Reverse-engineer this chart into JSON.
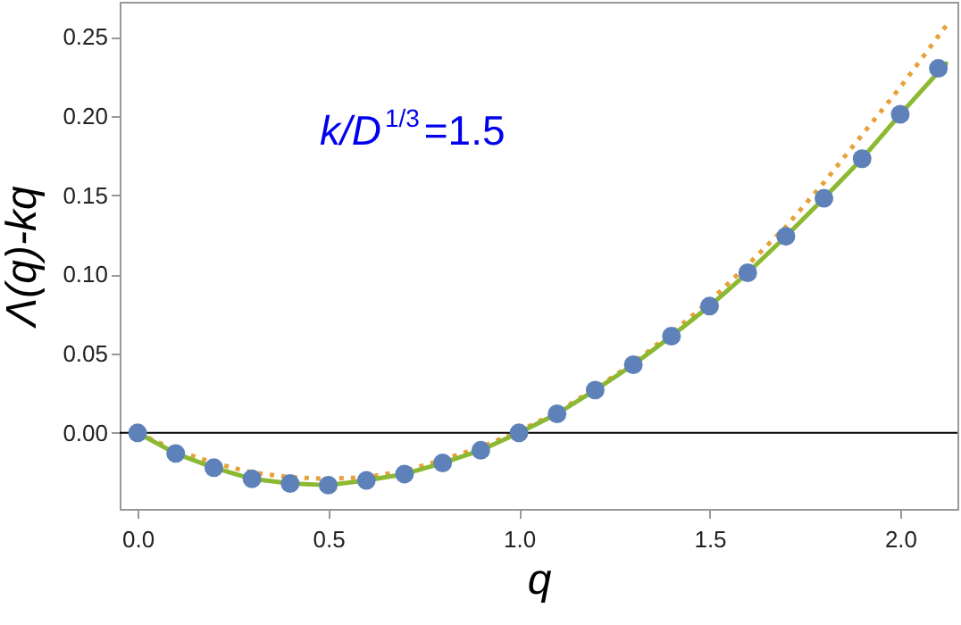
{
  "chart_data": {
    "type": "scatter",
    "xlabel": "q",
    "ylabel": "Λ(q)-kq",
    "annotations": [
      "k/D$^{1/3}$=1.5"
    ],
    "xlim": [
      -0.047,
      2.15
    ],
    "xticks": [
      {
        "value": 0,
        "label": "0.0"
      },
      {
        "value": 0.5,
        "label": "0.5"
      },
      {
        "value": 1,
        "label": "1.0"
      },
      {
        "value": 1.5,
        "label": "1.5"
      },
      {
        "value": 2,
        "label": "2.0"
      }
    ],
    "ylim": [
      -0.048,
      0.272
    ],
    "yticks": [
      {
        "value": 0,
        "label": "0.00"
      },
      {
        "value": 0.05,
        "label": "0.05"
      },
      {
        "value": 0.1,
        "label": "0.10"
      },
      {
        "value": 0.15,
        "label": "0.15"
      },
      {
        "value": 0.2,
        "label": "0.20"
      },
      {
        "value": 0.25,
        "label": "0.25"
      }
    ],
    "ref_lines": [
      {
        "axis": "y",
        "value": 0,
        "color": "#000000"
      }
    ],
    "series": [
      {
        "type": "line",
        "color": "#e8a13a",
        "line_style": "dotted",
        "x": [
          0,
          0.1,
          0.2,
          0.3,
          0.4,
          0.5,
          0.6,
          0.7,
          0.8,
          0.9,
          1.0,
          1.1,
          1.2,
          1.3,
          1.4,
          1.5,
          1.6,
          1.7,
          1.8,
          1.9,
          2.0,
          2.13
        ],
        "values": [
          0,
          -0.011,
          -0.019,
          -0.025,
          -0.028,
          -0.029,
          -0.028,
          -0.024,
          -0.017,
          -0.009,
          0.001,
          0.013,
          0.028,
          0.044,
          0.063,
          0.083,
          0.106,
          0.13,
          0.158,
          0.188,
          0.218,
          0.26
        ]
      },
      {
        "type": "line",
        "color": "#8cb832",
        "line_style": "solid",
        "x": [
          0,
          0.1,
          0.2,
          0.3,
          0.4,
          0.5,
          0.6,
          0.7,
          0.8,
          0.9,
          1.0,
          1.1,
          1.2,
          1.3,
          1.4,
          1.5,
          1.6,
          1.7,
          1.8,
          1.9,
          2.0,
          2.12
        ],
        "values": [
          0,
          -0.013,
          -0.022,
          -0.029,
          -0.032,
          -0.033,
          -0.03,
          -0.026,
          -0.019,
          -0.011,
          0,
          0.012,
          0.027,
          0.043,
          0.061,
          0.08,
          0.101,
          0.124,
          0.148,
          0.173,
          0.201,
          0.233
        ]
      },
      {
        "color": "#5d81b8",
        "marker": "circle",
        "x": [
          0,
          0.1,
          0.2,
          0.3,
          0.4,
          0.5,
          0.6,
          0.7,
          0.8,
          0.9,
          1.0,
          1.1,
          1.2,
          1.3,
          1.4,
          1.5,
          1.6,
          1.7,
          1.8,
          1.9,
          2.0,
          2.1
        ],
        "values": [
          0,
          -0.013,
          -0.022,
          -0.029,
          -0.032,
          -0.033,
          -0.03,
          -0.026,
          -0.019,
          -0.011,
          0,
          0.012,
          0.027,
          0.043,
          0.061,
          0.08,
          0.101,
          0.124,
          0.148,
          0.173,
          0.201,
          0.23
        ]
      }
    ],
    "grid": false
  }
}
